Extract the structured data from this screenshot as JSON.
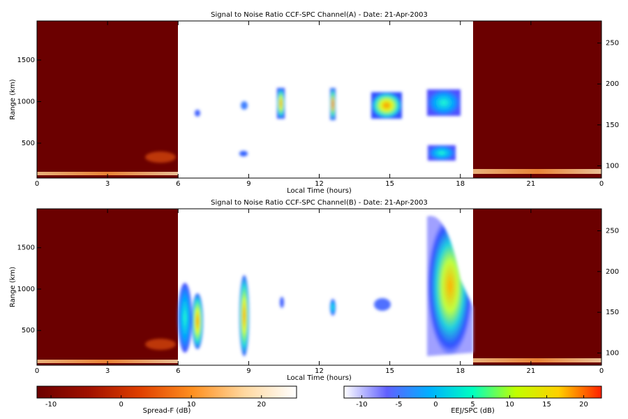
{
  "chart_data": [
    {
      "type": "heatmap",
      "title": "Signal to Noise Ratio CCF-SPC Channel(A) - Date: 21-Apr-2003",
      "xlabel": "Local Time (hours)",
      "ylabel": "Range (km)",
      "xlim": [
        0,
        24
      ],
      "xticks": [
        0,
        3,
        6,
        9,
        12,
        15,
        18,
        21,
        {
          "value": 24,
          "label": "0"
        }
      ],
      "ylim": [
        80,
        1970
      ],
      "yticks": [
        500,
        1000,
        1500
      ],
      "y2lim": [
        85,
        277
      ],
      "y2ticks": [
        100,
        150,
        200,
        250
      ]
    },
    {
      "type": "heatmap",
      "title": "Signal to Noise Ratio CCF-SPC Channel(B) - Date: 21-Apr-2003",
      "xlabel": "Local Time (hours)",
      "ylabel": "Range (km)",
      "xlim": [
        0,
        24
      ],
      "xticks": [
        0,
        3,
        6,
        9,
        12,
        15,
        18,
        21,
        {
          "value": 24,
          "label": "0"
        }
      ],
      "ylim": [
        80,
        1970
      ],
      "yticks": [
        500,
        1000,
        1500
      ],
      "y2lim": [
        85,
        277
      ],
      "y2ticks": [
        100,
        150,
        200,
        250
      ]
    },
    {
      "type": "colorbar",
      "xlabel": "Spread-F (dB)",
      "xlim": [
        -12,
        25
      ],
      "xticks": [
        -10,
        0,
        10,
        20
      ],
      "colors": [
        "#6b0000",
        "#a01000",
        "#e04000",
        "#ff9020",
        "#ffd8a0",
        "#ffffff"
      ]
    },
    {
      "type": "colorbar",
      "xlabel": "EEJ/SPC (dB)",
      "xlim": [
        -12.4,
        22.4
      ],
      "xticks": [
        -10,
        -5,
        0,
        5,
        10,
        15,
        20
      ],
      "colors": [
        "#ffffff",
        "#6060ff",
        "#00b0ff",
        "#00ffc0",
        "#c0ff00",
        "#ffd000",
        "#ff2000"
      ]
    }
  ]
}
